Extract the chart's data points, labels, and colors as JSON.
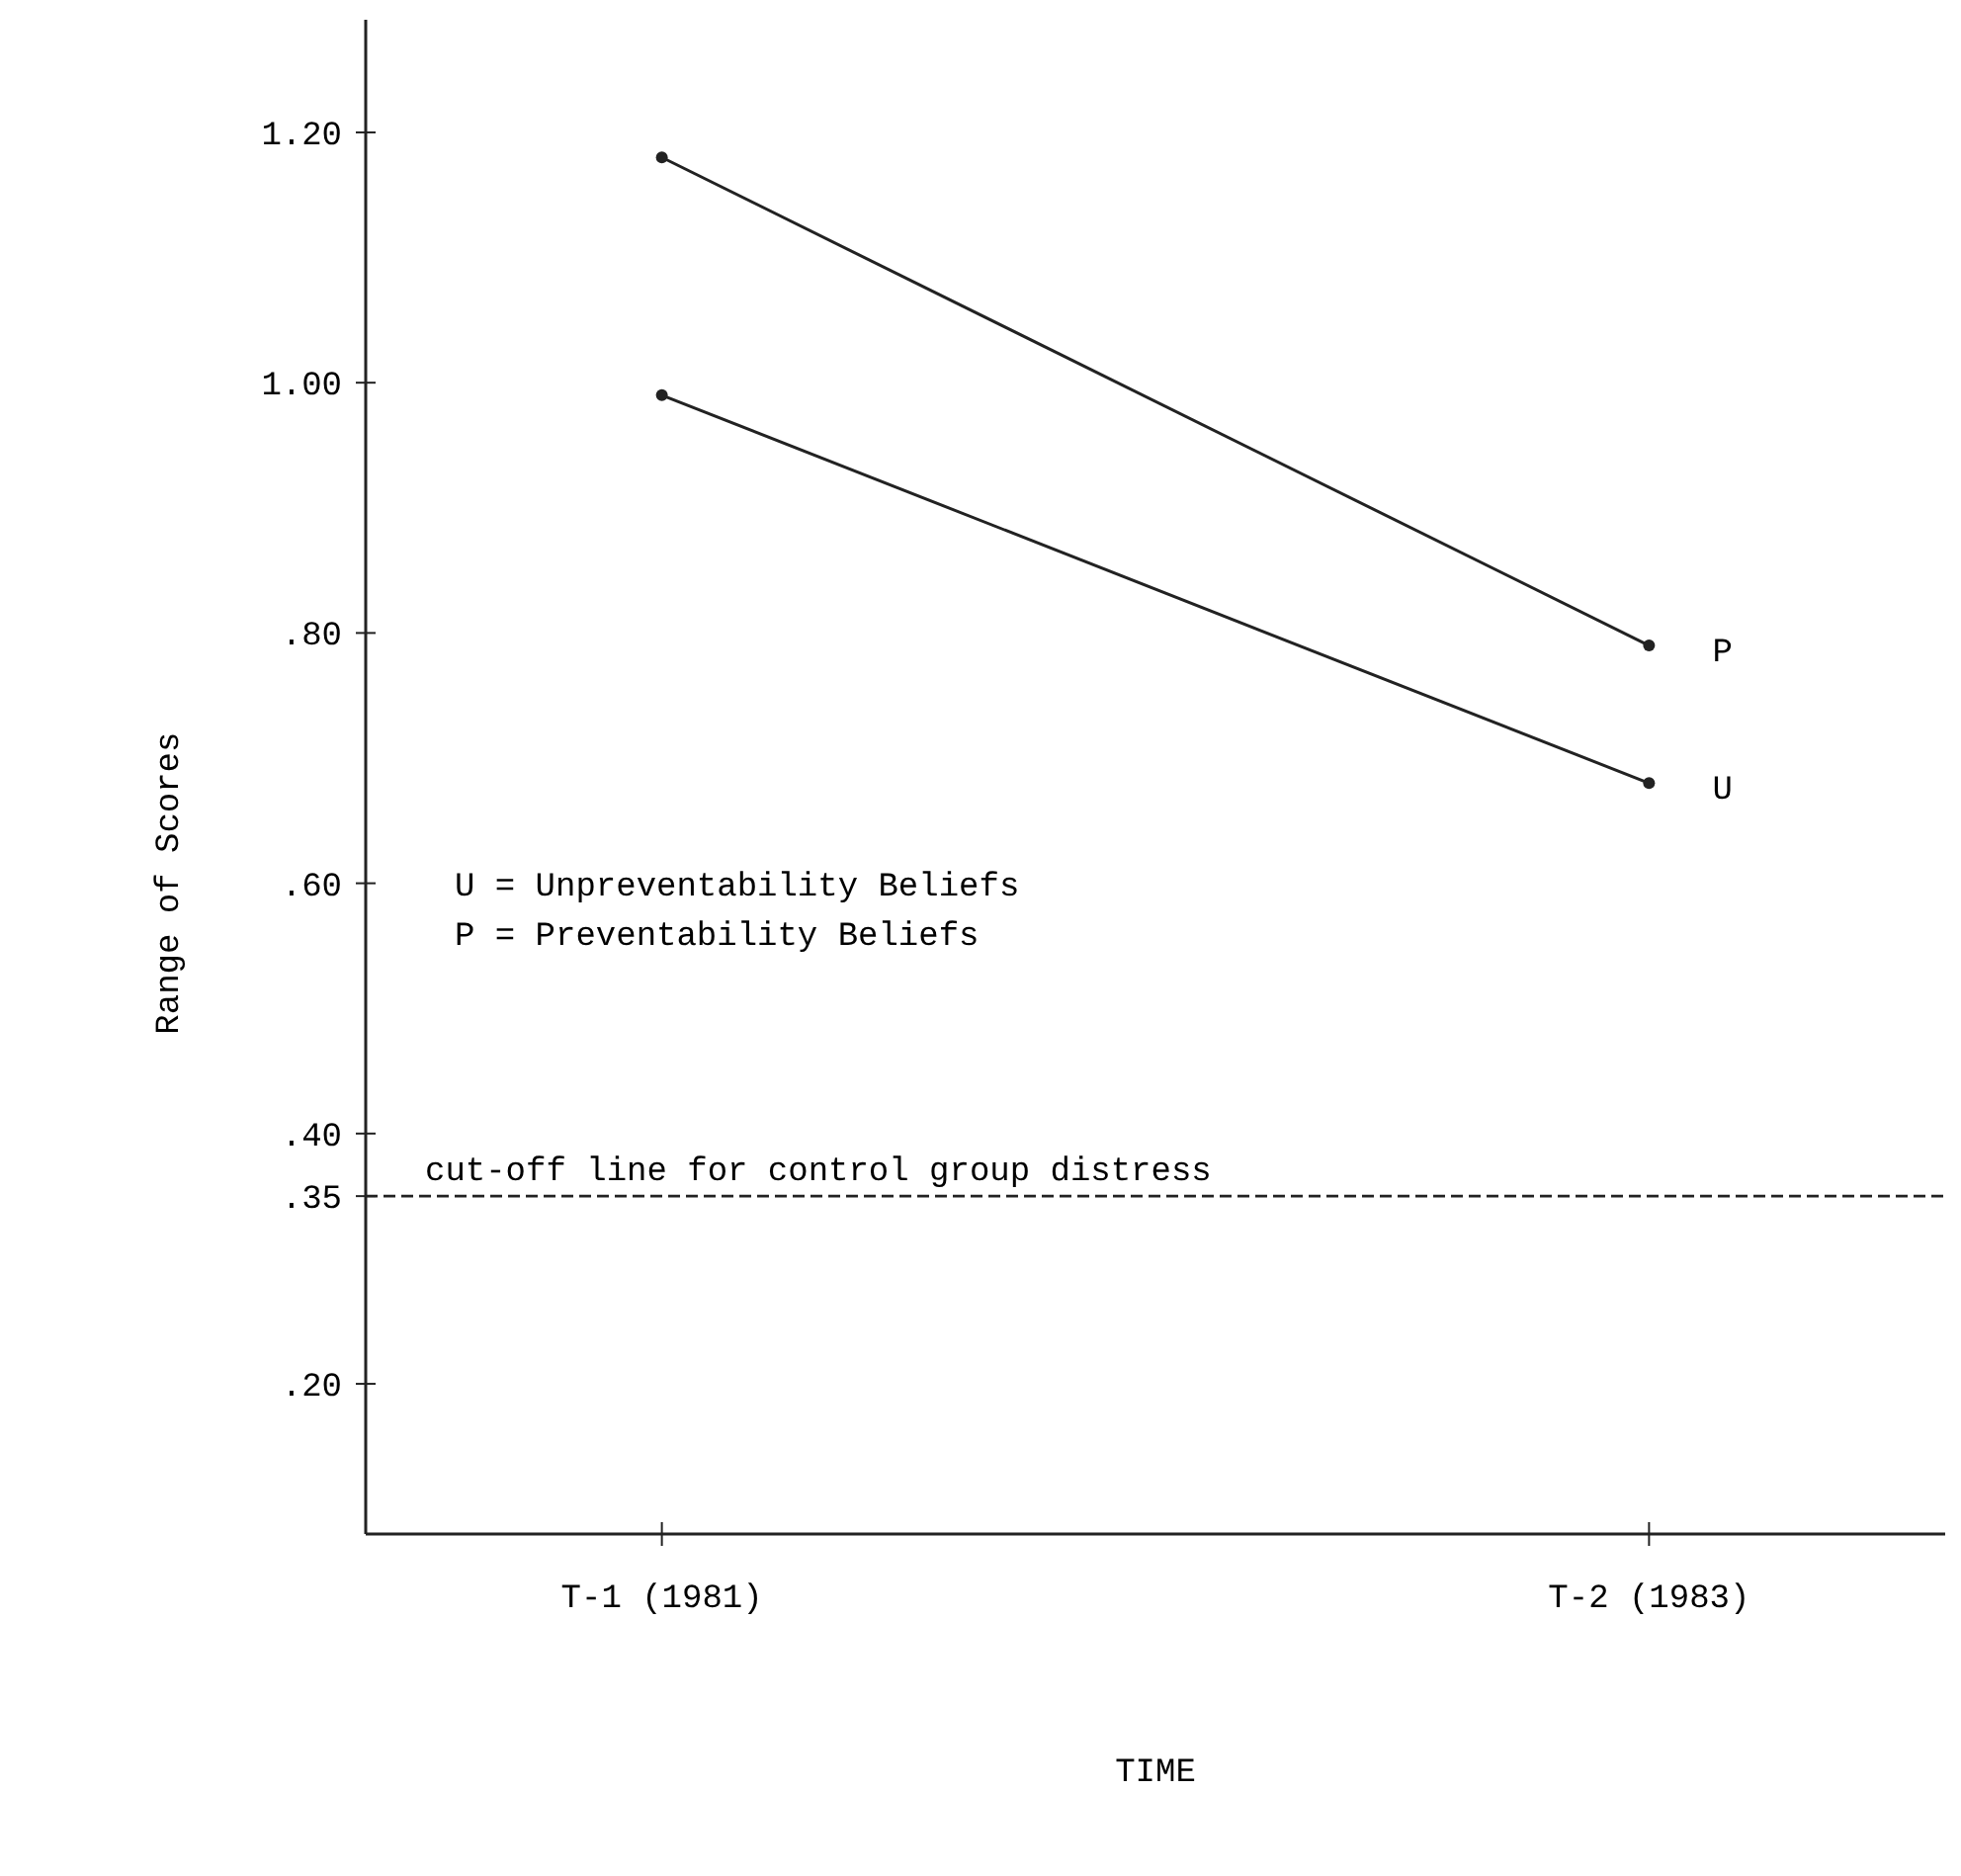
{
  "chart_data": {
    "type": "line",
    "xlabel": "TIME",
    "ylabel": "Range of Scores",
    "categories": [
      "T-1 (1981)",
      "T-2 (1983)"
    ],
    "series": [
      {
        "name": "P",
        "color": "#222222",
        "values": [
          1.18,
          0.79
        ]
      },
      {
        "name": "U",
        "color": "#222222",
        "values": [
          0.99,
          0.68
        ]
      }
    ],
    "ylim": [
      0.08,
      1.29
    ],
    "yticks": [
      {
        "value": 1.2,
        "label": "1.20"
      },
      {
        "value": 1.0,
        "label": "1.00"
      },
      {
        "value": 0.8,
        "label": ".80"
      },
      {
        "value": 0.6,
        "label": ".60"
      },
      {
        "value": 0.4,
        "label": ".40"
      },
      {
        "value": 0.35,
        "label": ".35"
      },
      {
        "value": 0.2,
        "label": ".20"
      }
    ],
    "ref_lines": [
      {
        "axis": "y",
        "value": 0.35,
        "label": "cut-off line for control group distress",
        "line_style": "dashed",
        "color": "#222222"
      }
    ],
    "annotations": [
      "U = Unpreventability Beliefs",
      "P = Preventability Beliefs"
    ],
    "marker": "circle",
    "line_style": "solid",
    "grid": false
  }
}
